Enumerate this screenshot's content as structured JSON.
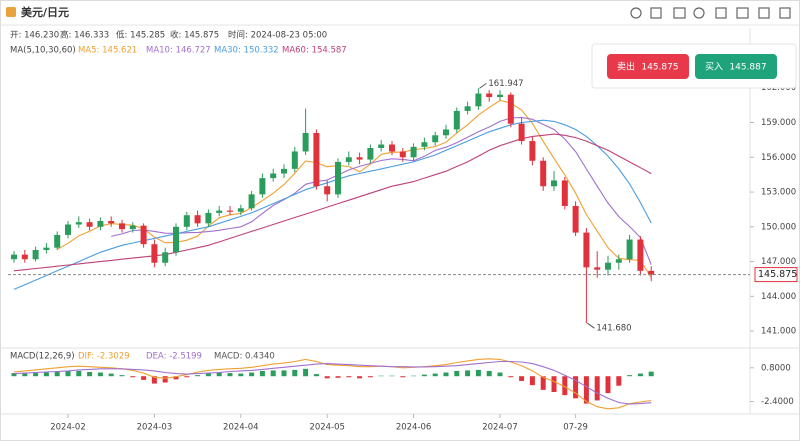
{
  "header": {
    "title": "美元/日元",
    "info": [
      "开: 146.230",
      "高: 146.333",
      "低: 145.285",
      "收: 145.875",
      "时间: 2024-08-23 05:00"
    ],
    "ma_title": "MA(5,10,30,60)",
    "macd_title": "MACD(12,26,9)",
    "macd_info": [
      "DIF: -2.3029",
      "DEA: -2.5199",
      "MACD: 0.4340"
    ]
  },
  "trade": {
    "sell": "卖出",
    "sell_price": "145.875",
    "buy": "买入",
    "buy_price": "145.887"
  },
  "chart_data": [
    {
      "type": "candlestick",
      "colors": {
        "up": "#2a9d5c",
        "down": "#e0323c"
      },
      "categories": [
        null,
        null,
        null,
        null,
        null,
        "2024-02",
        null,
        null,
        null,
        null,
        null,
        null,
        null,
        "2024-03",
        null,
        null,
        null,
        null,
        null,
        null,
        null,
        "2024-04",
        null,
        null,
        null,
        null,
        null,
        null,
        null,
        "2024-05",
        null,
        null,
        null,
        null,
        null,
        null,
        null,
        "2024-06",
        null,
        null,
        null,
        null,
        null,
        null,
        null,
        "2024-07",
        null,
        null,
        null,
        null,
        null,
        null,
        "07-29",
        null,
        null,
        null,
        null,
        null,
        null,
        null
      ],
      "open": [
        147.2,
        147.6,
        147.2,
        148.0,
        148.2,
        149.3,
        150.2,
        150.4,
        150.0,
        150.5,
        150.3,
        149.8,
        150.1,
        148.5,
        146.9,
        147.8,
        150.0,
        151.0,
        150.3,
        151.2,
        151.4,
        151.3,
        151.6,
        152.8,
        154.2,
        154.6,
        155.0,
        156.5,
        158.1,
        153.5,
        152.8,
        155.6,
        156.0,
        155.8,
        156.8,
        157.1,
        156.5,
        156.0,
        156.9,
        157.3,
        157.9,
        158.4,
        160.0,
        160.4,
        161.5,
        161.2,
        161.4,
        158.9,
        157.4,
        155.7,
        153.5,
        154.0,
        151.8,
        149.5,
        146.5,
        146.3,
        146.9,
        147.2,
        148.9,
        146.2
      ],
      "high": [
        147.9,
        148.0,
        148.3,
        148.6,
        149.6,
        150.5,
        150.9,
        150.7,
        150.8,
        150.9,
        150.6,
        150.4,
        150.3,
        148.9,
        148.2,
        150.3,
        151.3,
        151.4,
        151.5,
        151.8,
        151.8,
        151.9,
        153.1,
        154.6,
        155.0,
        155.4,
        156.9,
        160.2,
        158.4,
        154.0,
        155.9,
        156.5,
        156.4,
        157.1,
        157.5,
        157.4,
        156.8,
        157.2,
        157.7,
        158.2,
        158.8,
        160.3,
        160.8,
        161.947,
        161.8,
        161.8,
        161.6,
        159.4,
        157.8,
        156.0,
        154.8,
        154.3,
        152.2,
        149.9,
        147.9,
        147.5,
        147.6,
        149.3,
        149.2,
        146.6
      ],
      "low": [
        146.9,
        146.9,
        147.0,
        147.7,
        148.0,
        149.0,
        149.9,
        149.7,
        149.7,
        150.0,
        149.5,
        149.5,
        148.2,
        146.5,
        146.6,
        147.5,
        149.7,
        150.0,
        150.0,
        150.9,
        151.0,
        151.0,
        151.4,
        152.5,
        153.9,
        154.2,
        154.7,
        156.2,
        153.2,
        152.2,
        152.5,
        155.3,
        155.4,
        155.5,
        156.5,
        156.2,
        155.6,
        155.7,
        156.6,
        157.0,
        157.6,
        158.1,
        159.7,
        160.1,
        160.8,
        160.9,
        158.6,
        157.1,
        155.3,
        153.1,
        153.1,
        151.5,
        149.2,
        141.68,
        145.6,
        145.8,
        146.3,
        146.9,
        145.8,
        145.3
      ],
      "close": [
        147.6,
        147.2,
        148.0,
        148.2,
        149.3,
        150.2,
        150.4,
        150.0,
        150.5,
        150.3,
        149.8,
        150.1,
        148.5,
        146.9,
        147.8,
        150.0,
        151.0,
        150.3,
        151.2,
        151.4,
        151.3,
        151.6,
        152.8,
        154.2,
        154.6,
        155.0,
        156.5,
        158.1,
        153.5,
        152.8,
        155.6,
        156.0,
        155.8,
        156.8,
        157.1,
        156.5,
        156.0,
        156.9,
        157.3,
        157.9,
        158.4,
        160.0,
        160.4,
        161.5,
        161.2,
        161.4,
        158.9,
        157.4,
        155.7,
        153.5,
        154.0,
        151.8,
        149.5,
        146.5,
        146.3,
        146.9,
        147.2,
        148.9,
        146.2,
        145.875
      ],
      "series": [
        {
          "name": "MA5: 145.621",
          "color": "#f0a030",
          "values": [
            null,
            null,
            null,
            null,
            148.06,
            148.58,
            149.22,
            149.62,
            150.08,
            150.28,
            150.2,
            150.14,
            149.84,
            149.12,
            148.62,
            148.66,
            148.84,
            149.2,
            150.06,
            150.78,
            151.04,
            151.16,
            151.66,
            152.26,
            152.9,
            153.64,
            154.62,
            155.68,
            155.54,
            155.18,
            155.3,
            155.2,
            154.74,
            155.4,
            156.26,
            156.44,
            156.44,
            156.66,
            156.76,
            156.92,
            157.3,
            158.1,
            158.8,
            159.64,
            160.3,
            160.9,
            160.68,
            160.08,
            158.92,
            157.38,
            155.9,
            154.48,
            152.9,
            151.06,
            149.62,
            148.2,
            147.28,
            147.16,
            147.1,
            145.621
          ]
        },
        {
          "name": "MA10: 146.727",
          "color": "#a070d0",
          "values": [
            null,
            null,
            null,
            null,
            null,
            null,
            null,
            null,
            null,
            149.17,
            149.39,
            149.68,
            149.73,
            149.6,
            149.45,
            149.43,
            149.49,
            149.52,
            149.59,
            149.7,
            149.85,
            150,
            150.43,
            151.16,
            151.84,
            152.34,
            152.89,
            153.67,
            153.9,
            154.04,
            154.47,
            154.91,
            155.21,
            155.47,
            155.72,
            155.87,
            155.82,
            155.7,
            156.08,
            156.59,
            156.87,
            157.27,
            157.73,
            158.2,
            158.61,
            159.1,
            159.39,
            159.44,
            159.28,
            158.84,
            158.4,
            157.58,
            156.49,
            154.99,
            153.5,
            152.05,
            150.88,
            150.03,
            149.08,
            146.727
          ]
        },
        {
          "name": "MA30: 150.332",
          "color": "#4a9ee0",
          "values": [
            144.6,
            145.0,
            145.4,
            145.8,
            146.2,
            146.6,
            147.0,
            147.4,
            147.8,
            148.1,
            148.4,
            148.6,
            148.8,
            149.0,
            149.2,
            149.4,
            149.6,
            149.8,
            150.0,
            150.3,
            150.6,
            150.9,
            151.2,
            151.6,
            152.0,
            152.4,
            152.8,
            153.2,
            153.5,
            153.8,
            154.1,
            154.4,
            154.6,
            154.8,
            155.0,
            155.2,
            155.4,
            155.6,
            155.9,
            156.2,
            156.6,
            157.0,
            157.4,
            157.8,
            158.2,
            158.5,
            158.8,
            159.0,
            159.1,
            159.2,
            159.1,
            158.8,
            158.4,
            157.8,
            157.0,
            156.1,
            155.0,
            153.7,
            152.1,
            150.332
          ]
        },
        {
          "name": "MA60: 154.587",
          "color": "#c0407a",
          "values": [
            146.2,
            146.3,
            146.4,
            146.5,
            146.6,
            146.7,
            146.8,
            146.9,
            147.0,
            147.1,
            147.2,
            147.3,
            147.4,
            147.5,
            147.6,
            147.8,
            148.0,
            148.2,
            148.4,
            148.7,
            149.0,
            149.3,
            149.6,
            149.9,
            150.2,
            150.5,
            150.8,
            151.1,
            151.4,
            151.7,
            152.0,
            152.3,
            152.6,
            152.9,
            153.2,
            153.5,
            153.7,
            153.9,
            154.2,
            154.5,
            154.8,
            155.2,
            155.6,
            156.1,
            156.6,
            157.0,
            157.3,
            157.6,
            157.8,
            157.9,
            158.0,
            157.9,
            157.7,
            157.4,
            157.0,
            156.6,
            156.1,
            155.6,
            155.1,
            154.587
          ]
        }
      ],
      "annotations": [
        "161.947",
        "141.680"
      ],
      "current_price": 145.875,
      "ylim": [
        139.8,
        163.1
      ],
      "yticks": [
        {
          "value": 162,
          "label": "162.000"
        },
        {
          "value": 159,
          "label": "159.000"
        },
        {
          "value": 156,
          "label": "156.000"
        },
        {
          "value": 153,
          "label": "153.000"
        },
        {
          "value": 150,
          "label": "150.000"
        },
        {
          "value": 147,
          "label": "147.000"
        },
        {
          "value": 144,
          "label": "144.000"
        },
        {
          "value": 141,
          "label": "141.000"
        }
      ]
    },
    {
      "type": "bar",
      "colors": {
        "up": "#2a9d5c",
        "down": "#e0323c"
      },
      "values": [
        0.3,
        0.25,
        0.3,
        0.35,
        0.45,
        0.5,
        0.5,
        0.4,
        0.35,
        0.25,
        0.1,
        -0.1,
        -0.35,
        -0.7,
        -0.6,
        -0.3,
        -0.1,
        0.1,
        0.3,
        0.35,
        0.3,
        0.25,
        0.35,
        0.5,
        0.55,
        0.55,
        0.6,
        0.7,
        0.2,
        -0.2,
        -0.15,
        -0.1,
        -0.2,
        -0.1,
        0.05,
        0.05,
        -0.1,
        0.05,
        0.15,
        0.25,
        0.35,
        0.5,
        0.55,
        0.6,
        0.5,
        0.35,
        -0.1,
        -0.45,
        -0.85,
        -1.3,
        -1.5,
        -1.8,
        -2.1,
        -2.6,
        -2.3,
        -1.6,
        -0.9,
        0.1,
        0.25,
        0.434
      ],
      "series": [
        {
          "name": "DIF",
          "color": "#f0a030",
          "values": [
            0.4,
            0.5,
            0.6,
            0.7,
            0.8,
            0.9,
            0.95,
            0.9,
            0.85,
            0.8,
            0.7,
            0.55,
            0.3,
            -0.1,
            -0.2,
            -0.05,
            0.15,
            0.4,
            0.55,
            0.65,
            0.7,
            0.75,
            0.85,
            1.0,
            1.15,
            1.25,
            1.4,
            1.6,
            1.4,
            1.1,
            1.05,
            1.0,
            0.9,
            0.9,
            0.95,
            0.9,
            0.8,
            0.85,
            0.9,
            1.0,
            1.1,
            1.3,
            1.45,
            1.6,
            1.65,
            1.6,
            1.35,
            1.0,
            0.5,
            -0.1,
            -0.5,
            -1.0,
            -1.6,
            -2.4,
            -2.9,
            -3.1,
            -3.0,
            -2.6,
            -2.45,
            -2.3029
          ]
        },
        {
          "name": "DEA",
          "color": "#a070d0",
          "values": [
            0.25,
            0.3,
            0.35,
            0.4,
            0.45,
            0.5,
            0.6,
            0.65,
            0.7,
            0.7,
            0.7,
            0.65,
            0.6,
            0.5,
            0.35,
            0.25,
            0.2,
            0.25,
            0.3,
            0.35,
            0.45,
            0.5,
            0.55,
            0.65,
            0.75,
            0.85,
            0.95,
            1.05,
            1.15,
            1.2,
            1.15,
            1.1,
            1.05,
            1.0,
            0.95,
            0.9,
            0.9,
            0.88,
            0.88,
            0.9,
            0.95,
            1.0,
            1.1,
            1.2,
            1.3,
            1.4,
            1.4,
            1.35,
            1.2,
            0.9,
            0.55,
            0.1,
            -0.4,
            -1.0,
            -1.6,
            -2.1,
            -2.5,
            -2.65,
            -2.6,
            -2.5199
          ]
        }
      ],
      "ylim": [
        -3.4,
        2.3
      ],
      "yticks": [
        {
          "value": 0.8,
          "label": "0.8000"
        },
        {
          "value": -2.4,
          "label": "-2.4000"
        }
      ]
    }
  ]
}
